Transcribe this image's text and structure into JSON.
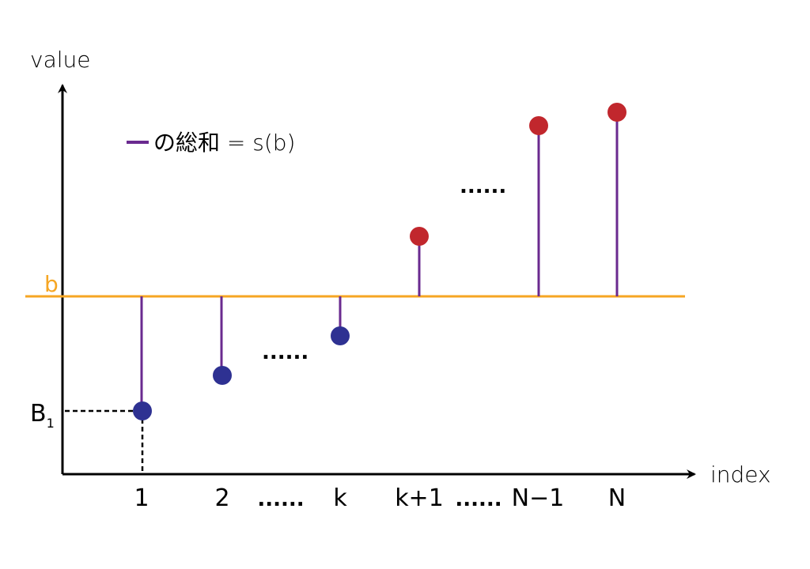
{
  "axes": {
    "y_title": "value",
    "x_title": "index"
  },
  "legend": {
    "text": "の総和 = s(b)"
  },
  "threshold": {
    "label": "b"
  },
  "b1_label": {
    "main": "B",
    "sub": "1"
  },
  "x_ticks": [
    "1",
    "2",
    "......",
    "k",
    "k+1",
    "......",
    "N−1",
    "N"
  ],
  "ellipsis_marks": {
    "upper": "......",
    "lower": "......"
  },
  "colors": {
    "threshold": "#f6a623",
    "stem": "#6a2a8f",
    "below_point": "#2e3192",
    "above_point": "#c1272d",
    "axis": "#000000"
  }
}
